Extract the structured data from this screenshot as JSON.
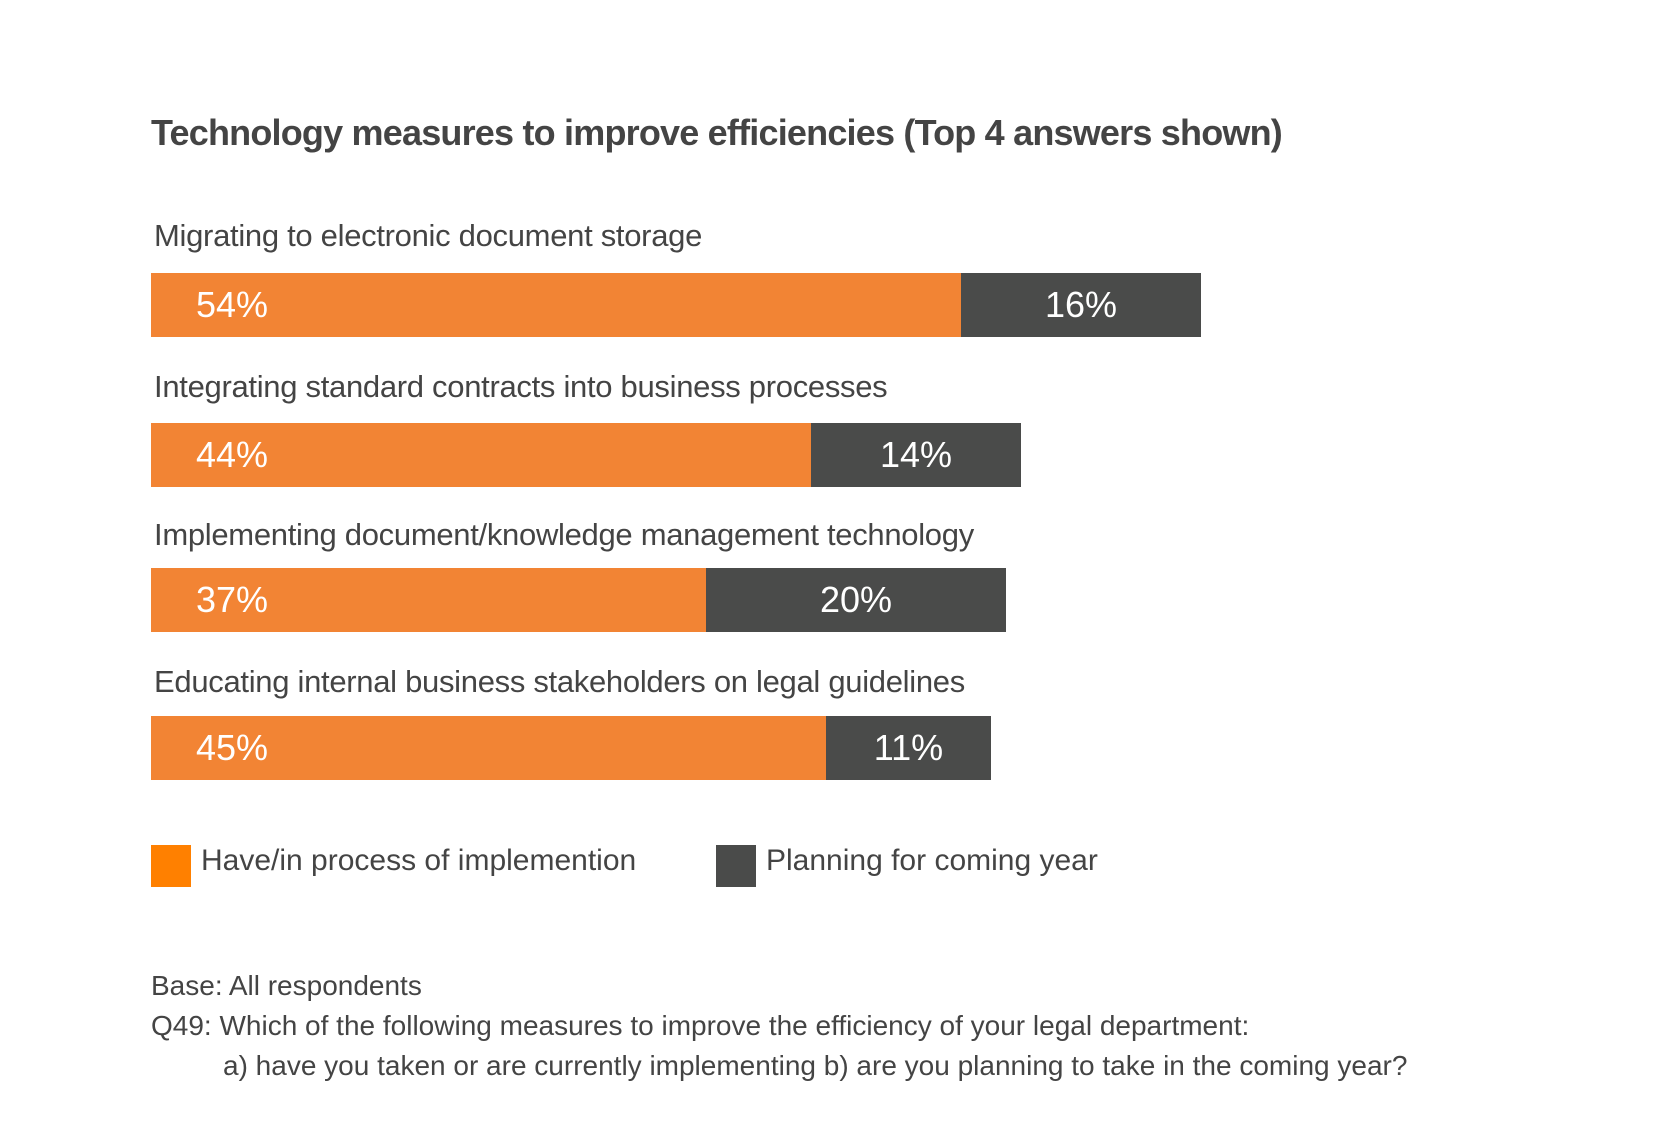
{
  "chart_data": {
    "type": "bar",
    "orientation": "horizontal",
    "stacked": true,
    "title": "Technology measures to improve efficiencies (Top 4 answers shown)",
    "categories": [
      "Migrating to electronic document storage",
      "Integrating standard contracts into business processes",
      "Implementing document/knowledge management technology",
      "Educating internal business stakeholders on legal guidelines"
    ],
    "series": [
      {
        "name": "Have/in process of implemention",
        "color": "#f28434",
        "legend_color": "#ff8000",
        "values": [
          54,
          44,
          37,
          45
        ],
        "labels": [
          "54%",
          "44%",
          "37%",
          "45%"
        ]
      },
      {
        "name": "Planning for coming year",
        "color": "#4a4b4a",
        "legend_color": "#4a4b4a",
        "values": [
          16,
          14,
          20,
          11
        ],
        "labels": [
          "16%",
          "14%",
          "20%",
          "11%"
        ]
      }
    ],
    "unit": "%",
    "legend_position": "bottom-left",
    "grid": false
  },
  "footer": {
    "base": "Base: All respondents",
    "question": "Q49: Which of the following measures to improve the efficiency of your legal department:",
    "sub": "a) have you taken or are currently implementing  b) are you planning to take in the coming year?"
  }
}
